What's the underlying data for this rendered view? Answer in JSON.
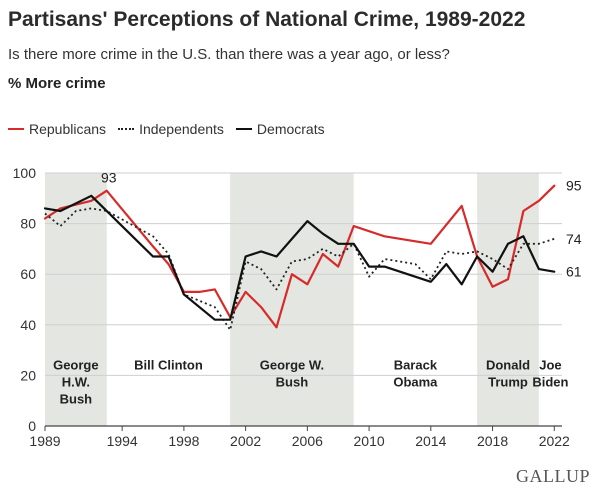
{
  "header": {
    "title": "Partisans' Perceptions of National Crime, 1989-2022",
    "subtitle": "Is there more crime in the U.S. than there was a year ago, or less?",
    "measure": "% More crime"
  },
  "legend": {
    "items": [
      {
        "label": "Republicans",
        "style": "solid",
        "color": "#d62b2b"
      },
      {
        "label": "Independents",
        "style": "dotted",
        "color": "#222222"
      },
      {
        "label": "Democrats",
        "style": "solid",
        "color": "#111111"
      }
    ]
  },
  "brand": "GALLUP",
  "chart_data": {
    "type": "line",
    "title": "Partisans' Perceptions of National Crime, 1989-2022",
    "xlabel": "",
    "ylabel": "% More crime",
    "xlim": [
      1989,
      2022.5
    ],
    "ylim": [
      0,
      100
    ],
    "x_ticks": [
      1989,
      1994,
      1998,
      2002,
      2006,
      2010,
      2014,
      2018,
      2022
    ],
    "y_ticks": [
      0,
      20,
      40,
      60,
      80,
      100
    ],
    "grid": true,
    "shaded_periods": [
      {
        "start": 1989,
        "end": 1993,
        "label": [
          "George",
          "H.W.",
          "Bush"
        ]
      },
      {
        "start": 2001,
        "end": 2009,
        "label": [
          "George W.",
          "Bush"
        ]
      },
      {
        "start": 2017,
        "end": 2021,
        "label": [
          "Donald",
          "Trump"
        ]
      }
    ],
    "unshaded_labels": [
      {
        "start": 1993,
        "end": 2001,
        "label": [
          "Bill Clinton"
        ]
      },
      {
        "start": 2009,
        "end": 2017,
        "label": [
          "Barack",
          "Obama"
        ]
      },
      {
        "start": 2021,
        "end": 2022.5,
        "label": [
          "Joe",
          "Biden"
        ]
      }
    ],
    "series": [
      {
        "name": "Republicans",
        "color": "#d62b2b",
        "style": "solid",
        "points": [
          [
            1989,
            82
          ],
          [
            1990,
            86
          ],
          [
            1992,
            89
          ],
          [
            1993,
            93
          ],
          [
            1996,
            71
          ],
          [
            1997,
            64
          ],
          [
            1998,
            53
          ],
          [
            1999,
            53
          ],
          [
            2000,
            54
          ],
          [
            2001,
            43
          ],
          [
            2002,
            53
          ],
          [
            2003,
            47
          ],
          [
            2004,
            39
          ],
          [
            2005,
            60
          ],
          [
            2006,
            56
          ],
          [
            2007,
            68
          ],
          [
            2008,
            63
          ],
          [
            2009,
            79
          ],
          [
            2011,
            75
          ],
          [
            2014,
            72
          ],
          [
            2016,
            87
          ],
          [
            2017,
            67
          ],
          [
            2018,
            55
          ],
          [
            2019,
            58
          ],
          [
            2020,
            85
          ],
          [
            2021,
            89
          ],
          [
            2022,
            95
          ]
        ],
        "callouts": [
          {
            "x": 1993,
            "value": 93,
            "label": "93",
            "position": "top"
          },
          {
            "x": 2022,
            "value": 95,
            "label": "95",
            "position": "end"
          }
        ]
      },
      {
        "name": "Independents",
        "color": "#222222",
        "style": "dotted",
        "points": [
          [
            1989,
            84
          ],
          [
            1990,
            79
          ],
          [
            1991,
            85
          ],
          [
            1992,
            86
          ],
          [
            1993,
            85
          ],
          [
            1996,
            75
          ],
          [
            1997,
            68
          ],
          [
            1998,
            52
          ],
          [
            2000,
            47
          ],
          [
            2001,
            38
          ],
          [
            2002,
            65
          ],
          [
            2003,
            62
          ],
          [
            2004,
            54
          ],
          [
            2005,
            65
          ],
          [
            2006,
            66
          ],
          [
            2007,
            70
          ],
          [
            2008,
            67
          ],
          [
            2009,
            72
          ],
          [
            2010,
            59
          ],
          [
            2011,
            66
          ],
          [
            2013,
            64
          ],
          [
            2014,
            58
          ],
          [
            2015,
            69
          ],
          [
            2016,
            68
          ],
          [
            2017,
            69
          ],
          [
            2018,
            66
          ],
          [
            2019,
            62
          ],
          [
            2020,
            72
          ],
          [
            2021,
            72
          ],
          [
            2022,
            74
          ]
        ],
        "callouts": [
          {
            "x": 2022,
            "value": 74,
            "label": "74",
            "position": "end"
          }
        ]
      },
      {
        "name": "Democrats",
        "color": "#111111",
        "style": "solid",
        "points": [
          [
            1989,
            86
          ],
          [
            1990,
            85
          ],
          [
            1992,
            91
          ],
          [
            1996,
            67
          ],
          [
            1997,
            67
          ],
          [
            1998,
            52
          ],
          [
            2000,
            42
          ],
          [
            2001,
            42
          ],
          [
            2002,
            67
          ],
          [
            2003,
            69
          ],
          [
            2004,
            67
          ],
          [
            2006,
            81
          ],
          [
            2007,
            76
          ],
          [
            2008,
            72
          ],
          [
            2009,
            72
          ],
          [
            2010,
            63
          ],
          [
            2011,
            63
          ],
          [
            2014,
            57
          ],
          [
            2015,
            64
          ],
          [
            2016,
            56
          ],
          [
            2017,
            67
          ],
          [
            2018,
            61
          ],
          [
            2019,
            72
          ],
          [
            2020,
            75
          ],
          [
            2021,
            62
          ],
          [
            2022,
            61
          ]
        ],
        "callouts": [
          {
            "x": 2022,
            "value": 61,
            "label": "61",
            "position": "end"
          }
        ]
      }
    ]
  }
}
